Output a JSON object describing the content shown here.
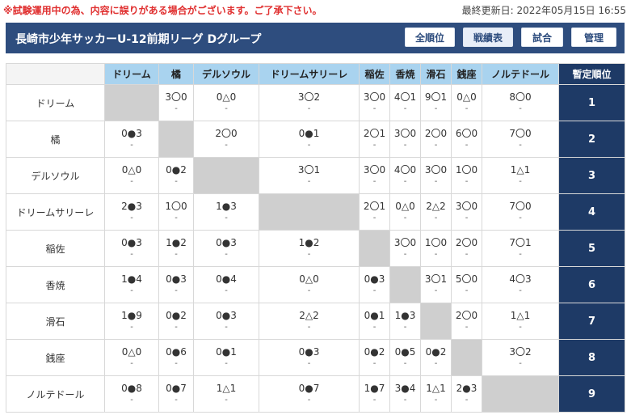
{
  "notice": "※試験運用中の為、内容に誤りがある場合がございます。ご了承下さい。",
  "updated": "最終更新日: 2022年05月15日 16:55",
  "header": {
    "title": "長崎市少年サッカーU-12前期リーグ Dグループ",
    "buttons": [
      "全順位",
      "戦績表",
      "試合",
      "管理"
    ],
    "active_button": "戦績表"
  },
  "table": {
    "rank_header": "暫定順位",
    "teams": [
      "ドリーム",
      "橘",
      "デルソウル",
      "ドリームサリーレ",
      "稲佐",
      "香焼",
      "滑石",
      "銭座",
      "ノルテドール"
    ],
    "rows": [
      {
        "team": "ドリーム",
        "rank": "1",
        "results": [
          null,
          "3〇0",
          "0△0",
          "3〇2",
          "3〇0",
          "4〇1",
          "9〇1",
          "0△0",
          "8〇0"
        ]
      },
      {
        "team": "橘",
        "rank": "2",
        "results": [
          "0●3",
          null,
          "2〇0",
          "0●1",
          "2〇1",
          "3〇0",
          "2〇0",
          "6〇0",
          "7〇0"
        ]
      },
      {
        "team": "デルソウル",
        "rank": "3",
        "results": [
          "0△0",
          "0●2",
          null,
          "3〇1",
          "3〇0",
          "4〇0",
          "3〇0",
          "1〇0",
          "1△1"
        ]
      },
      {
        "team": "ドリームサリーレ",
        "rank": "4",
        "results": [
          "2●3",
          "1〇0",
          "1●3",
          null,
          "2〇1",
          "0△0",
          "2△2",
          "3〇0",
          "7〇0"
        ]
      },
      {
        "team": "稲佐",
        "rank": "5",
        "results": [
          "0●3",
          "1●2",
          "0●3",
          "1●2",
          null,
          "3〇0",
          "1〇0",
          "2〇0",
          "7〇1"
        ]
      },
      {
        "team": "香焼",
        "rank": "6",
        "results": [
          "1●4",
          "0●3",
          "0●4",
          "0△0",
          "0●3",
          null,
          "3〇1",
          "5〇0",
          "4〇3"
        ]
      },
      {
        "team": "滑石",
        "rank": "7",
        "results": [
          "1●9",
          "0●2",
          "0●3",
          "2△2",
          "0●1",
          "1●3",
          null,
          "2〇0",
          "1△1"
        ]
      },
      {
        "team": "銭座",
        "rank": "8",
        "results": [
          "0△0",
          "0●6",
          "0●1",
          "0●3",
          "0●2",
          "0●5",
          "0●2",
          null,
          "3〇2"
        ]
      },
      {
        "team": "ノルテドール",
        "rank": "9",
        "results": [
          "0●8",
          "0●7",
          "1△1",
          "0●7",
          "1●7",
          "3●4",
          "1△1",
          "2●3",
          null
        ]
      }
    ],
    "sub_placeholder": "-"
  }
}
